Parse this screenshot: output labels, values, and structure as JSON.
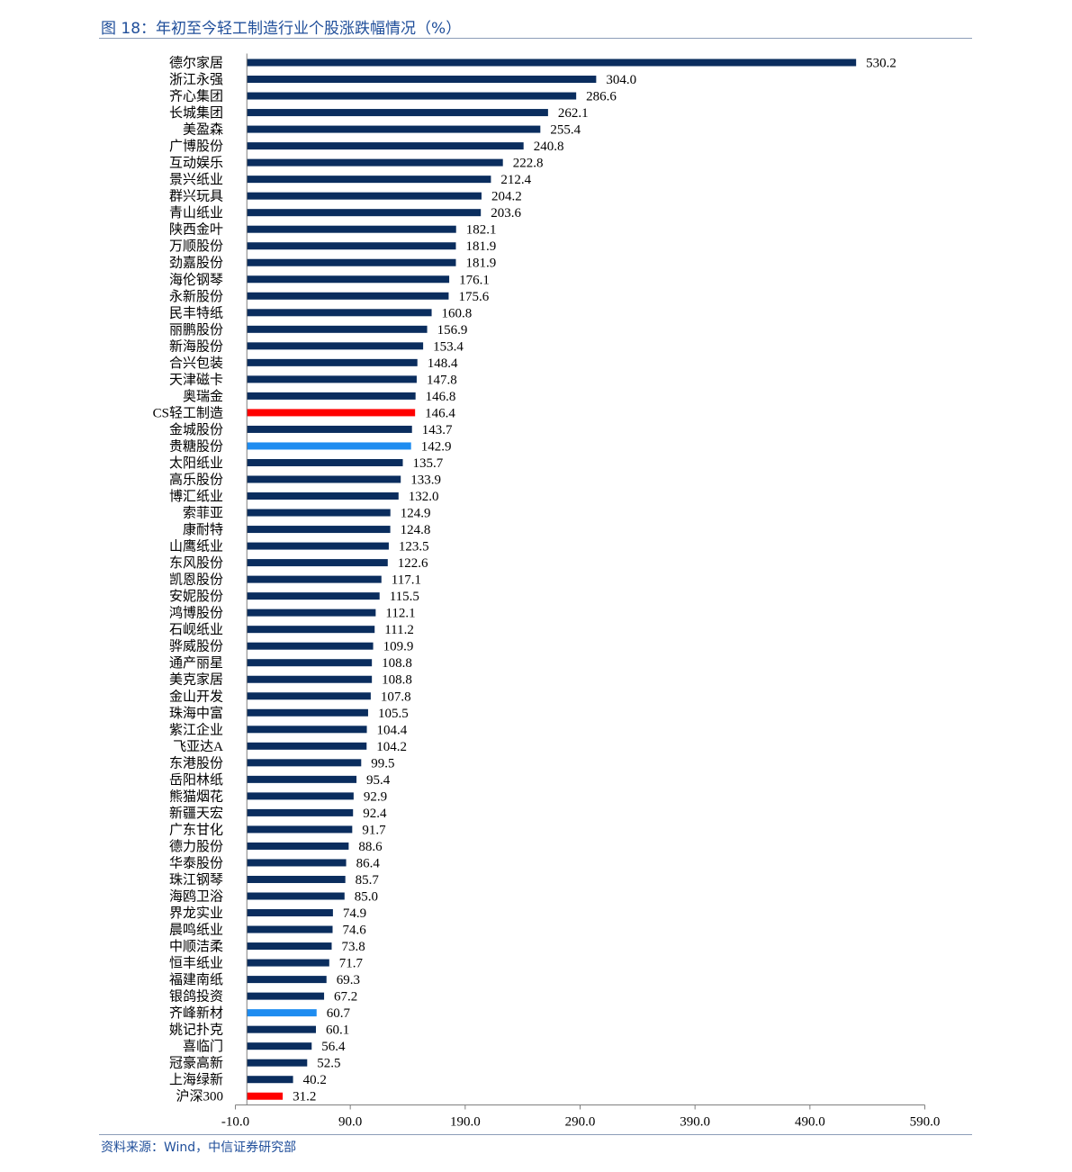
{
  "header": {
    "title": "图 18：年初至今轻工制造行业个股涨跌幅情况（%）"
  },
  "footer": {
    "source": "资料来源：Wind，中信证券研究部"
  },
  "colors": {
    "default_bar": "#0a2d5e",
    "industry_index_bar": "#ff0000",
    "highlight_bar": "#1e8cf0",
    "title_text": "#1f4e9a",
    "rule": "#8c9db8"
  },
  "chart_data": {
    "type": "bar",
    "orientation": "horizontal",
    "title": "",
    "xlabel": "",
    "ylabel": "",
    "xlim": [
      -10.0,
      590.0
    ],
    "xticks": [
      "-10.0",
      "90.0",
      "190.0",
      "290.0",
      "390.0",
      "490.0",
      "590.0"
    ],
    "xtick_values": [
      -10,
      90,
      190,
      290,
      390,
      490,
      590
    ],
    "grid": false,
    "legend": "none",
    "categories": [
      "德尔家居",
      "浙江永强",
      "齐心集团",
      "长城集团",
      "美盈森",
      "广博股份",
      "互动娱乐",
      "景兴纸业",
      "群兴玩具",
      "青山纸业",
      "陕西金叶",
      "万顺股份",
      "劲嘉股份",
      "海伦钢琴",
      "永新股份",
      "民丰特纸",
      "丽鹏股份",
      "新海股份",
      "合兴包装",
      "天津磁卡",
      "奥瑞金",
      "CS轻工制造",
      "金城股份",
      "贵糖股份",
      "太阳纸业",
      "高乐股份",
      "博汇纸业",
      "索菲亚",
      "康耐特",
      "山鹰纸业",
      "东风股份",
      "凯恩股份",
      "安妮股份",
      "鸿博股份",
      "石岘纸业",
      "骅威股份",
      "通产丽星",
      "美克家居",
      "金山开发",
      "珠海中富",
      "紫江企业",
      "飞亚达A",
      "东港股份",
      "岳阳林纸",
      "熊猫烟花",
      "新疆天宏",
      "广东甘化",
      "德力股份",
      "华泰股份",
      "珠江钢琴",
      "海鸥卫浴",
      "界龙实业",
      "晨鸣纸业",
      "中顺洁柔",
      "恒丰纸业",
      "福建南纸",
      "银鸽投资",
      "齐峰新材",
      "姚记扑克",
      "喜临门",
      "冠豪高新",
      "上海绿新",
      "沪深300"
    ],
    "values": [
      530.2,
      304.0,
      286.6,
      262.1,
      255.4,
      240.8,
      222.8,
      212.4,
      204.2,
      203.6,
      182.1,
      181.9,
      181.9,
      176.1,
      175.6,
      160.8,
      156.9,
      153.4,
      148.4,
      147.8,
      146.8,
      146.4,
      143.7,
      142.9,
      135.7,
      133.9,
      132.0,
      124.9,
      124.8,
      123.5,
      122.6,
      117.1,
      115.5,
      112.1,
      111.2,
      109.9,
      108.8,
      108.8,
      107.8,
      105.5,
      104.4,
      104.2,
      99.5,
      95.4,
      92.9,
      92.4,
      91.7,
      88.6,
      86.4,
      85.7,
      85.0,
      74.9,
      74.6,
      73.8,
      71.7,
      69.3,
      67.2,
      60.7,
      60.1,
      56.4,
      52.5,
      40.2,
      31.2
    ],
    "value_labels": [
      "530.2",
      "304.0",
      "286.6",
      "262.1",
      "255.4",
      "240.8",
      "222.8",
      "212.4",
      "204.2",
      "203.6",
      "182.1",
      "181.9",
      "181.9",
      "176.1",
      "175.6",
      "160.8",
      "156.9",
      "153.4",
      "148.4",
      "147.8",
      "146.8",
      "146.4",
      "143.7",
      "142.9",
      "135.7",
      "133.9",
      "132.0",
      "124.9",
      "124.8",
      "123.5",
      "122.6",
      "117.1",
      "115.5",
      "112.1",
      "111.2",
      "109.9",
      "108.8",
      "108.8",
      "107.8",
      "105.5",
      "104.4",
      "104.2",
      "99.5",
      "95.4",
      "92.9",
      "92.4",
      "91.7",
      "88.6",
      "86.4",
      "85.7",
      "85.0",
      "74.9",
      "74.6",
      "73.8",
      "71.7",
      "69.3",
      "67.2",
      "60.7",
      "60.1",
      "56.4",
      "52.5",
      "40.2",
      "31.2"
    ],
    "bar_colors": {
      "CS轻工制造": "#ff0000",
      "沪深300": "#ff0000",
      "贵糖股份": "#1e8cf0",
      "齐峰新材": "#1e8cf0"
    }
  }
}
